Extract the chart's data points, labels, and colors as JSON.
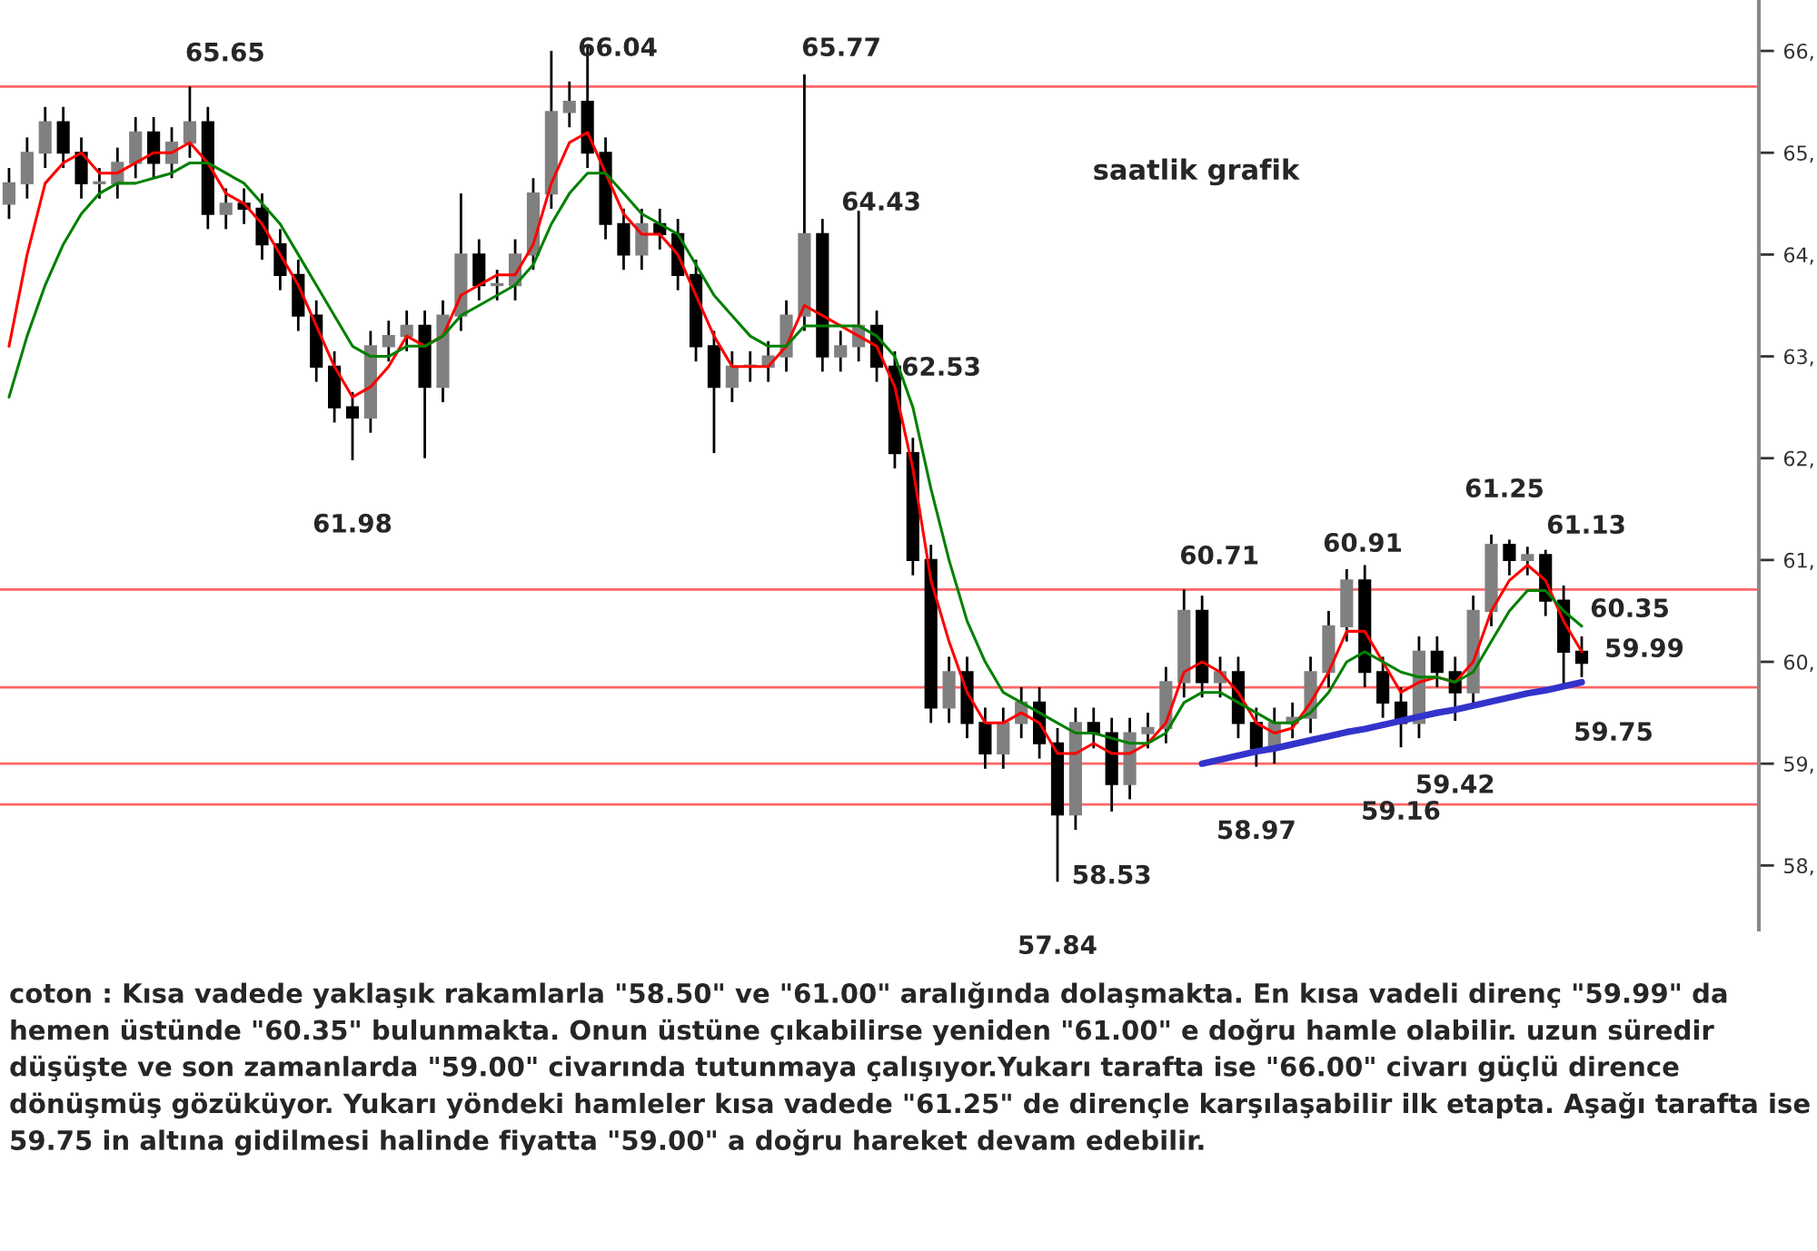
{
  "chart_data": {
    "type": "candlestick",
    "title": "saatlik grafik",
    "categories": [
      null,
      null,
      null,
      null,
      null,
      null,
      null,
      null,
      null,
      null,
      null,
      null,
      null,
      null,
      null,
      null,
      null,
      null,
      null,
      null,
      null,
      null,
      null,
      null,
      null,
      null,
      null,
      null,
      null,
      null,
      null,
      null,
      null,
      null,
      null,
      null,
      null,
      null,
      null,
      null,
      null,
      null,
      null,
      null,
      null,
      null,
      null,
      null,
      null,
      null,
      null,
      null,
      null,
      null,
      null,
      null,
      null,
      null,
      null,
      null,
      null,
      null,
      null,
      null,
      null,
      null,
      null,
      null,
      null,
      null,
      null,
      null,
      null,
      null,
      null,
      null,
      null,
      null,
      null,
      null,
      null,
      null,
      null,
      null,
      null,
      null,
      null,
      null
    ],
    "ohlc": [
      [
        64.5,
        64.85,
        64.35,
        64.7
      ],
      [
        64.7,
        65.15,
        64.55,
        65.0
      ],
      [
        65.0,
        65.45,
        64.85,
        65.3
      ],
      [
        65.3,
        65.45,
        64.85,
        65.0
      ],
      [
        65.0,
        65.15,
        64.55,
        64.7
      ],
      [
        64.7,
        64.85,
        64.55,
        64.7
      ],
      [
        64.7,
        65.05,
        64.55,
        64.9
      ],
      [
        64.9,
        65.35,
        64.75,
        65.2
      ],
      [
        65.2,
        65.35,
        64.75,
        64.9
      ],
      [
        64.9,
        65.25,
        64.75,
        65.1
      ],
      [
        65.1,
        65.65,
        64.95,
        65.3
      ],
      [
        65.3,
        65.45,
        64.25,
        64.4
      ],
      [
        64.4,
        64.65,
        64.25,
        64.5
      ],
      [
        64.5,
        64.65,
        64.3,
        64.45
      ],
      [
        64.45,
        64.6,
        63.95,
        64.1
      ],
      [
        64.1,
        64.25,
        63.65,
        63.8
      ],
      [
        63.8,
        63.95,
        63.25,
        63.4
      ],
      [
        63.4,
        63.55,
        62.75,
        62.9
      ],
      [
        62.9,
        63.05,
        62.35,
        62.5
      ],
      [
        62.5,
        62.65,
        61.98,
        62.4
      ],
      [
        62.4,
        63.25,
        62.25,
        63.1
      ],
      [
        63.1,
        63.35,
        62.95,
        63.2
      ],
      [
        63.2,
        63.45,
        63.05,
        63.3
      ],
      [
        63.3,
        63.45,
        62.0,
        62.7
      ],
      [
        62.7,
        63.55,
        62.55,
        63.4
      ],
      [
        63.4,
        64.6,
        63.25,
        64.0
      ],
      [
        64.0,
        64.15,
        63.55,
        63.7
      ],
      [
        63.7,
        63.85,
        63.55,
        63.7
      ],
      [
        63.7,
        64.15,
        63.55,
        64.0
      ],
      [
        64.0,
        64.75,
        63.85,
        64.6
      ],
      [
        64.6,
        66.0,
        64.45,
        65.4
      ],
      [
        65.4,
        65.7,
        65.25,
        65.5
      ],
      [
        65.5,
        66.04,
        64.85,
        65.0
      ],
      [
        65.0,
        65.15,
        64.15,
        64.3
      ],
      [
        64.3,
        64.45,
        63.85,
        64.0
      ],
      [
        64.0,
        64.45,
        63.85,
        64.3
      ],
      [
        64.3,
        64.45,
        64.05,
        64.2
      ],
      [
        64.2,
        64.35,
        63.65,
        63.8
      ],
      [
        63.8,
        63.95,
        62.95,
        63.1
      ],
      [
        63.1,
        63.25,
        62.05,
        62.7
      ],
      [
        62.7,
        63.05,
        62.55,
        62.9
      ],
      [
        62.9,
        63.05,
        62.75,
        62.9
      ],
      [
        62.9,
        63.15,
        62.75,
        63.0
      ],
      [
        63.0,
        63.55,
        62.85,
        63.4
      ],
      [
        63.4,
        65.77,
        63.25,
        64.2
      ],
      [
        64.2,
        64.35,
        62.85,
        63.0
      ],
      [
        63.0,
        63.25,
        62.85,
        63.1
      ],
      [
        63.1,
        64.43,
        62.95,
        63.3
      ],
      [
        63.3,
        63.45,
        62.75,
        62.9
      ],
      [
        62.9,
        63.05,
        61.9,
        62.05
      ],
      [
        62.05,
        62.2,
        60.85,
        61.0
      ],
      [
        61.0,
        61.15,
        59.4,
        59.55
      ],
      [
        59.55,
        60.05,
        59.4,
        59.9
      ],
      [
        59.9,
        60.05,
        59.25,
        59.4
      ],
      [
        59.4,
        59.55,
        58.95,
        59.1
      ],
      [
        59.1,
        59.55,
        58.95,
        59.4
      ],
      [
        59.4,
        59.75,
        59.25,
        59.6
      ],
      [
        59.6,
        59.75,
        59.05,
        59.2
      ],
      [
        59.2,
        59.35,
        57.84,
        58.5
      ],
      [
        58.5,
        59.55,
        58.35,
        59.4
      ],
      [
        59.4,
        59.55,
        59.15,
        59.3
      ],
      [
        59.3,
        59.45,
        58.53,
        58.8
      ],
      [
        58.8,
        59.45,
        58.65,
        59.3
      ],
      [
        59.3,
        59.5,
        59.15,
        59.35
      ],
      [
        59.35,
        59.95,
        59.2,
        59.8
      ],
      [
        59.8,
        60.71,
        59.65,
        60.5
      ],
      [
        60.5,
        60.65,
        59.65,
        59.8
      ],
      [
        59.8,
        60.05,
        59.65,
        59.9
      ],
      [
        59.9,
        60.05,
        59.25,
        59.4
      ],
      [
        59.4,
        59.55,
        58.97,
        59.15
      ],
      [
        59.15,
        59.55,
        59.0,
        59.4
      ],
      [
        59.4,
        59.6,
        59.25,
        59.45
      ],
      [
        59.45,
        60.05,
        59.3,
        59.9
      ],
      [
        59.9,
        60.5,
        59.75,
        60.35
      ],
      [
        60.35,
        60.91,
        60.2,
        60.8
      ],
      [
        60.8,
        60.95,
        59.75,
        59.9
      ],
      [
        59.9,
        60.05,
        59.45,
        59.6
      ],
      [
        59.6,
        59.75,
        59.16,
        59.4
      ],
      [
        59.4,
        60.25,
        59.25,
        60.1
      ],
      [
        60.1,
        60.25,
        59.75,
        59.9
      ],
      [
        59.9,
        60.05,
        59.42,
        59.7
      ],
      [
        59.7,
        60.65,
        59.55,
        60.5
      ],
      [
        60.5,
        61.25,
        60.35,
        61.15
      ],
      [
        61.15,
        61.2,
        60.85,
        61.0
      ],
      [
        61.0,
        61.13,
        60.85,
        61.05
      ],
      [
        61.05,
        61.1,
        60.45,
        60.6
      ],
      [
        60.6,
        60.75,
        59.75,
        60.1
      ],
      [
        60.1,
        60.25,
        59.85,
        59.99
      ]
    ],
    "series": [
      {
        "type": "line",
        "color": "#ff0000",
        "values": [
          63.1,
          64.0,
          64.7,
          64.9,
          65.0,
          64.8,
          64.8,
          64.9,
          65.0,
          65.0,
          65.1,
          64.9,
          64.6,
          64.5,
          64.3,
          64.0,
          63.7,
          63.3,
          62.9,
          62.6,
          62.7,
          62.9,
          63.2,
          63.1,
          63.2,
          63.6,
          63.7,
          63.8,
          63.8,
          64.1,
          64.7,
          65.1,
          65.2,
          64.8,
          64.4,
          64.2,
          64.2,
          64.0,
          63.6,
          63.2,
          62.9,
          62.9,
          62.9,
          63.1,
          63.5,
          63.4,
          63.3,
          63.2,
          63.1,
          62.7,
          61.9,
          60.8,
          60.2,
          59.7,
          59.4,
          59.4,
          59.5,
          59.4,
          59.1,
          59.1,
          59.2,
          59.1,
          59.1,
          59.2,
          59.4,
          59.9,
          60.0,
          59.9,
          59.7,
          59.4,
          59.3,
          59.35,
          59.6,
          59.9,
          60.3,
          60.3,
          60.0,
          59.7,
          59.8,
          59.85,
          59.8,
          60.0,
          60.5,
          60.8,
          60.95,
          60.8,
          60.4,
          60.1
        ]
      },
      {
        "type": "line",
        "color": "#008000",
        "values": [
          62.6,
          63.2,
          63.7,
          64.1,
          64.4,
          64.6,
          64.7,
          64.7,
          64.75,
          64.8,
          64.9,
          64.9,
          64.8,
          64.7,
          64.5,
          64.3,
          64.0,
          63.7,
          63.4,
          63.1,
          63.0,
          63.0,
          63.1,
          63.1,
          63.2,
          63.4,
          63.5,
          63.6,
          63.7,
          63.9,
          64.3,
          64.6,
          64.8,
          64.8,
          64.6,
          64.4,
          64.3,
          64.2,
          63.9,
          63.6,
          63.4,
          63.2,
          63.1,
          63.1,
          63.3,
          63.3,
          63.3,
          63.3,
          63.2,
          63.0,
          62.5,
          61.7,
          61.0,
          60.4,
          60.0,
          59.7,
          59.6,
          59.5,
          59.4,
          59.3,
          59.3,
          59.25,
          59.2,
          59.2,
          59.3,
          59.6,
          59.7,
          59.7,
          59.6,
          59.5,
          59.4,
          59.4,
          59.5,
          59.7,
          60.0,
          60.1,
          60.0,
          59.9,
          59.85,
          59.85,
          59.8,
          59.9,
          60.2,
          60.5,
          60.7,
          60.7,
          60.5,
          60.35
        ]
      },
      {
        "type": "line",
        "color": "#3333cc",
        "values": [
          null,
          null,
          null,
          null,
          null,
          null,
          null,
          null,
          null,
          null,
          null,
          null,
          null,
          null,
          null,
          null,
          null,
          null,
          null,
          null,
          null,
          null,
          null,
          null,
          null,
          null,
          null,
          null,
          null,
          null,
          null,
          null,
          null,
          null,
          null,
          null,
          null,
          null,
          null,
          null,
          null,
          null,
          null,
          null,
          null,
          null,
          null,
          null,
          null,
          null,
          null,
          null,
          null,
          null,
          null,
          null,
          null,
          null,
          null,
          null,
          null,
          null,
          null,
          null,
          null,
          null,
          59.0,
          59.04,
          59.08,
          59.12,
          59.15,
          59.19,
          59.23,
          59.27,
          59.31,
          59.34,
          59.38,
          59.42,
          59.46,
          59.5,
          59.53,
          59.57,
          59.61,
          59.65,
          59.69,
          59.72,
          59.76,
          59.8
        ]
      }
    ],
    "ref_lines": [
      {
        "axis": "y",
        "value": 65.65,
        "color": "#ff6666"
      },
      {
        "axis": "y",
        "value": 60.71,
        "color": "#ff6666"
      },
      {
        "axis": "y",
        "value": 59.75,
        "color": "#ff6666"
      },
      {
        "axis": "y",
        "value": 59.0,
        "color": "#ff6666"
      },
      {
        "axis": "y",
        "value": 58.6,
        "color": "#ff6666"
      }
    ],
    "ylim": [
      57.37,
      66.5
    ],
    "yticks": [
      {
        "value": 58,
        "label": "58,"
      },
      {
        "value": 59,
        "label": "59,"
      },
      {
        "value": 60,
        "label": "60,"
      },
      {
        "value": 61,
        "label": "61,"
      },
      {
        "value": 62,
        "label": "62,"
      },
      {
        "value": 63,
        "label": "63,"
      },
      {
        "value": 64,
        "label": "64,"
      },
      {
        "value": 65,
        "label": "65,"
      },
      {
        "value": 66,
        "label": "66,"
      }
    ],
    "tick_labels": "y",
    "annotations": [
      {
        "text": "65.65",
        "y": 65.65
      },
      {
        "text": "61.98",
        "y": 61.98
      },
      {
        "text": "57.84",
        "y": 57.84
      },
      {
        "text": "58.53",
        "y": 58.53
      },
      {
        "text": "60.71",
        "y": 60.71
      },
      {
        "text": "58.97",
        "y": 58.97
      },
      {
        "text": "59.16",
        "y": 59.16
      },
      {
        "text": "59.42",
        "y": 59.42
      },
      "66.04",
      "65.77",
      "64.43",
      "62.53",
      "60.91",
      "61.25",
      "61.13",
      "60.35",
      "59.99",
      "59.75",
      "coton : Kısa vadede yaklaşık rakamlarla \"58.50\" ve \"61.00\" aralığında dolaşmakta. En kısa vadeli direnç \"59.99\" da hemen üstünde \"60.35\" bulunmakta. Onun üstüne çıkabilirse yeniden \"61.00\" e doğru hamle olabilir. uzun süredir düşüşte ve son zamanlarda \"59.00\" civarında tutunmaya çalışıyor.Yukarı tarafta ise \"66.00\" civarı güçlü dirence dönüşmüş gözüküyor. Yukarı yöndeki hamleler kısa vadede \"61.25\" de dirençle karşılaşabilir ilk etapta. Aşağı tarafta ise 59.75 in altına gidilmesi halinde fiyatta \"59.00\" a doğru hareket devam edebilir."
    ]
  }
}
